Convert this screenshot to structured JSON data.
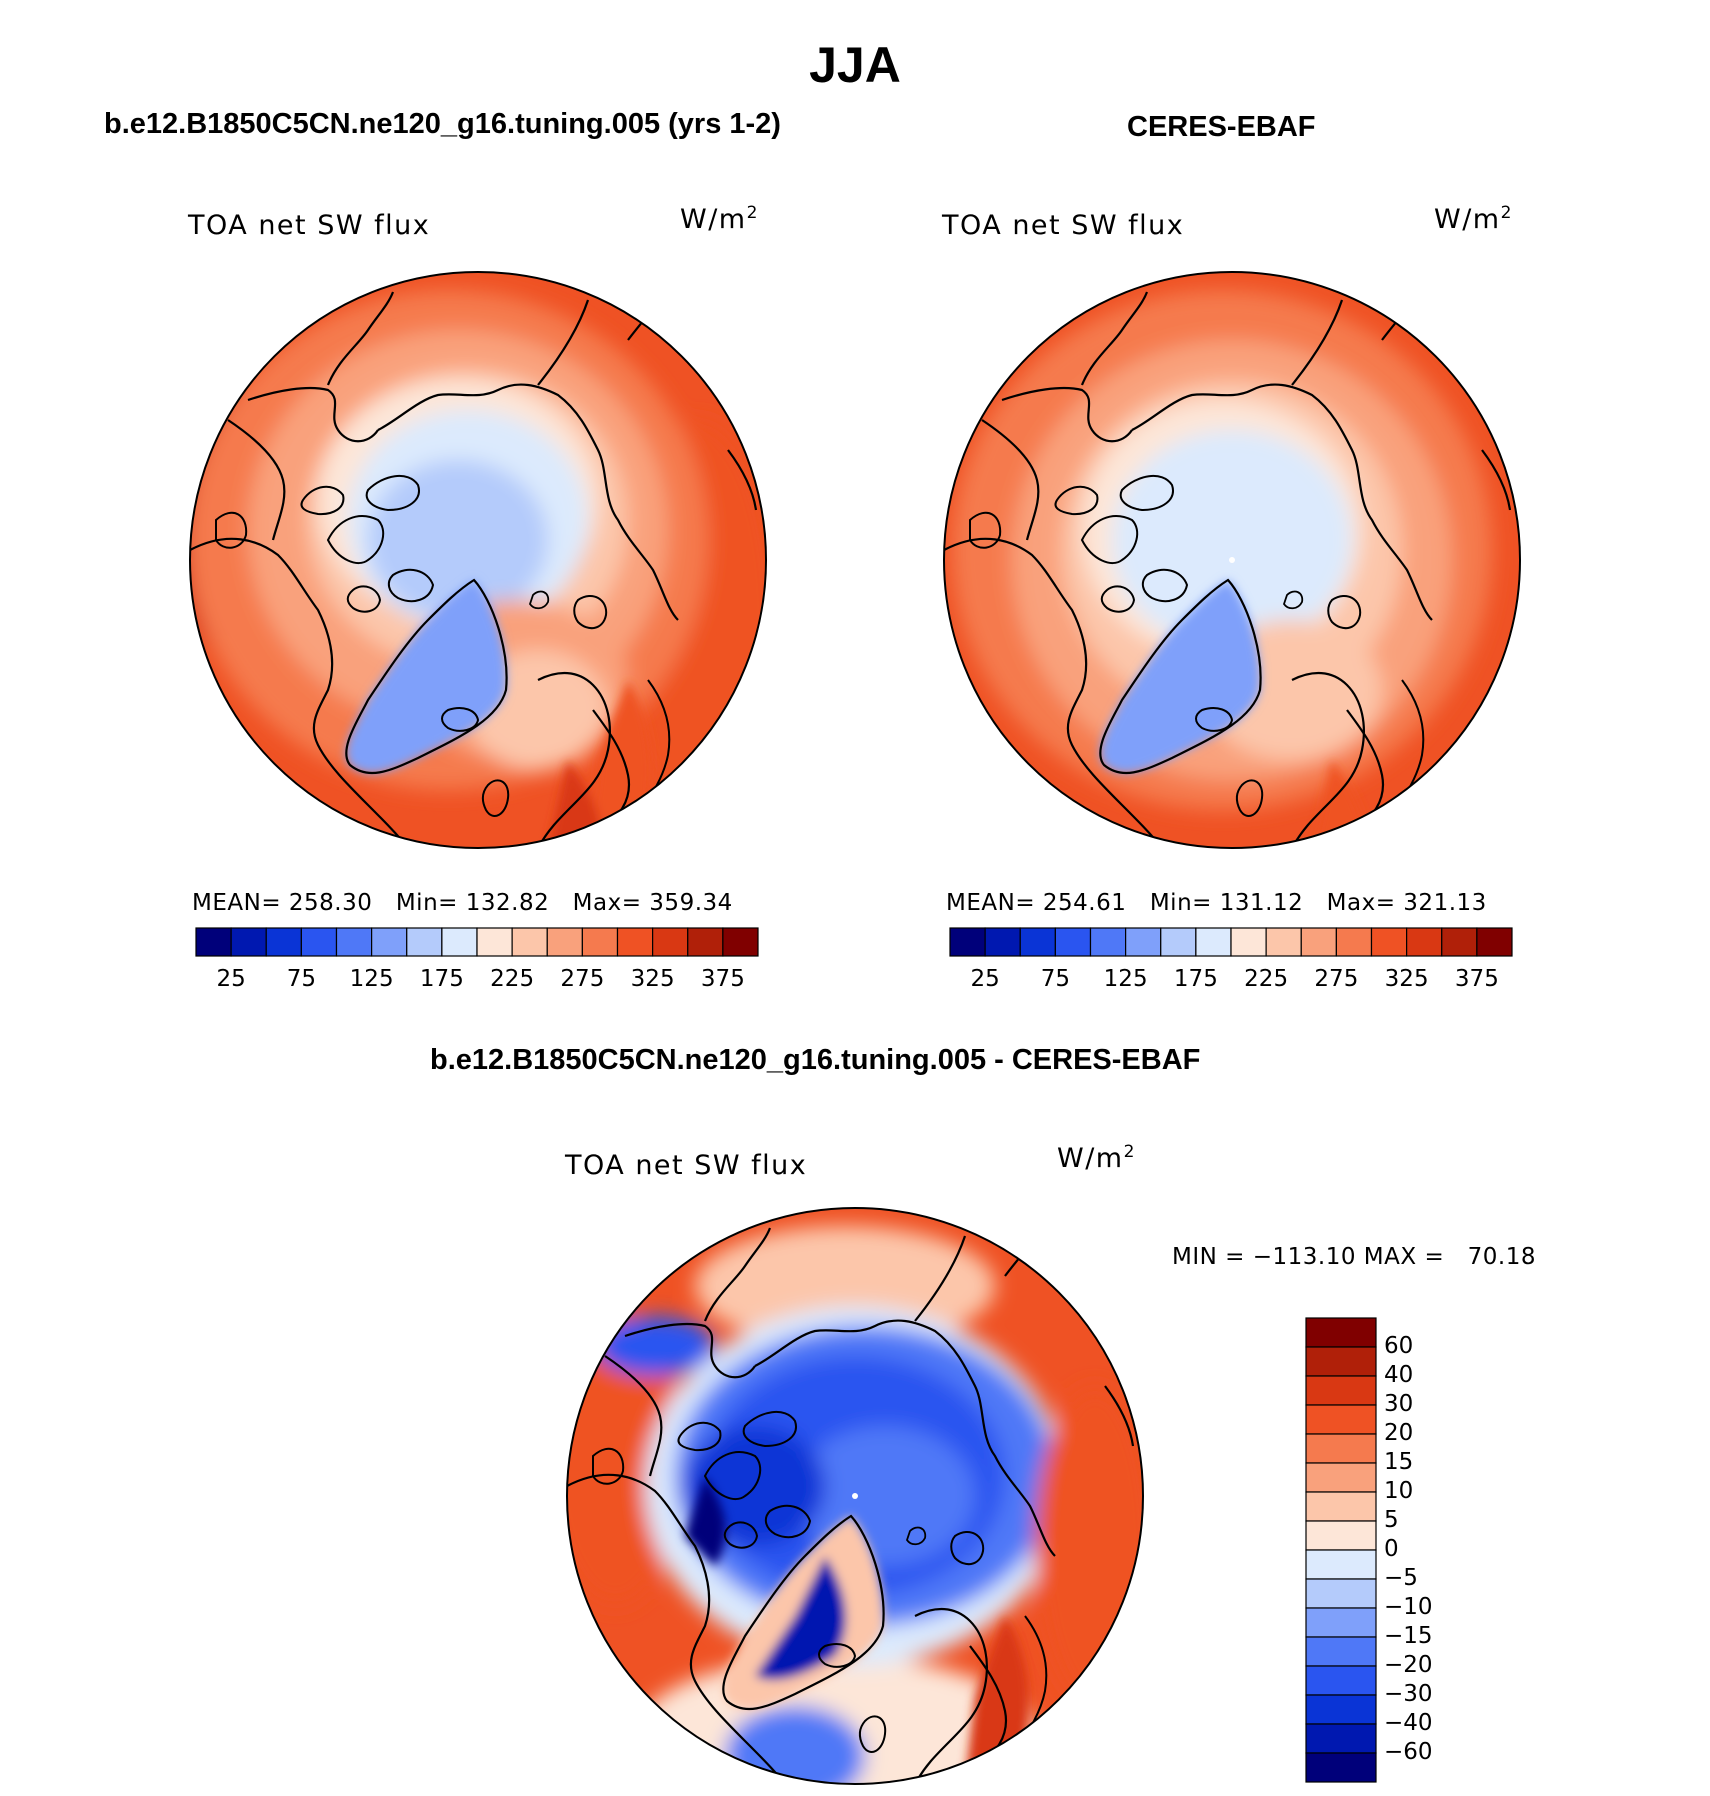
{
  "figure": {
    "season_title": "JJA",
    "panels": [
      {
        "id": "model",
        "title": "b.e12.B1850C5CN.ne120_g16.tuning.005 (yrs 1-2)",
        "variable": "TOA net SW flux",
        "units": "W/m",
        "units_sup": "2",
        "stats": {
          "mean_label": "MEAN=",
          "mean": "258.30",
          "min_label": "Min=",
          "min": "132.82",
          "max_label": "Max=",
          "max": "359.34"
        }
      },
      {
        "id": "obs",
        "title": "CERES-EBAF",
        "variable": "TOA net SW flux",
        "units": "W/m",
        "units_sup": "2",
        "stats": {
          "mean_label": "MEAN=",
          "mean": "254.61",
          "min_label": "Min=",
          "min": "131.12",
          "max_label": "Max=",
          "max": "321.13"
        }
      },
      {
        "id": "diff",
        "title": "b.e12.B1850C5CN.ne120_g16.tuning.005 - CERES-EBAF",
        "variable": "TOA net SW flux",
        "units": "W/m",
        "units_sup": "2",
        "stats": {
          "min_label": "MIN =",
          "min": "−113.10",
          "max_label": "MAX =",
          "max": "70.18"
        }
      }
    ],
    "colorbar_abs": {
      "colors": [
        "#00007a",
        "#0018b0",
        "#0a34d6",
        "#2a55f0",
        "#4f78f7",
        "#7fa0fa",
        "#b4cbfb",
        "#dceafd",
        "#fde6d8",
        "#fcc6aa",
        "#f9a17c",
        "#f57a4e",
        "#ef5224",
        "#d93813",
        "#b02009",
        "#800000"
      ],
      "labels": [
        "25",
        "75",
        "125",
        "175",
        "225",
        "275",
        "325",
        "375"
      ]
    },
    "colorbar_diff": {
      "colors": [
        "#00007a",
        "#0018b0",
        "#0a34d6",
        "#2a55f0",
        "#4f78f7",
        "#7fa0fa",
        "#b4cbfb",
        "#dceafd",
        "#fde6d8",
        "#fcc6aa",
        "#f9a17c",
        "#f57a4e",
        "#ef5224",
        "#d93813",
        "#b02009",
        "#800000"
      ],
      "labels": [
        "60",
        "40",
        "30",
        "20",
        "15",
        "10",
        "5",
        "0",
        "−5",
        "−10",
        "−15",
        "−20",
        "−30",
        "−40",
        "−60"
      ]
    }
  }
}
